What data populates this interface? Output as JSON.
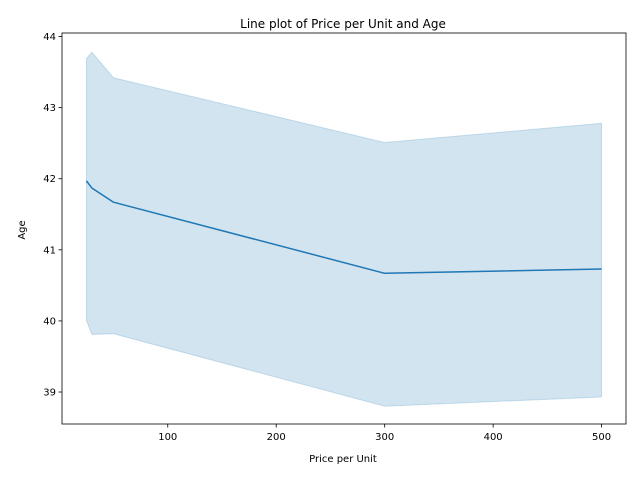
{
  "chart_data": {
    "type": "line",
    "title": "Line plot of Price per Unit and Age",
    "xlabel": "Price per Unit",
    "ylabel": "Age",
    "xlim": [
      2.5,
      522.5
    ],
    "ylim": [
      38.55,
      44.05
    ],
    "x_ticks": [
      100,
      200,
      300,
      400,
      500
    ],
    "y_ticks": [
      39,
      40,
      41,
      42,
      43,
      44
    ],
    "grid": false,
    "series": [
      {
        "color": "#1f77b4",
        "band_color": "#1f77b4",
        "x": [
          25,
          30,
          50,
          300,
          500
        ],
        "y": [
          41.97,
          41.87,
          41.67,
          40.67,
          40.73
        ],
        "ci_lower": [
          40.01,
          39.81,
          39.82,
          38.8,
          38.93
        ],
        "ci_upper": [
          43.69,
          43.78,
          43.42,
          42.51,
          42.78
        ]
      }
    ]
  }
}
